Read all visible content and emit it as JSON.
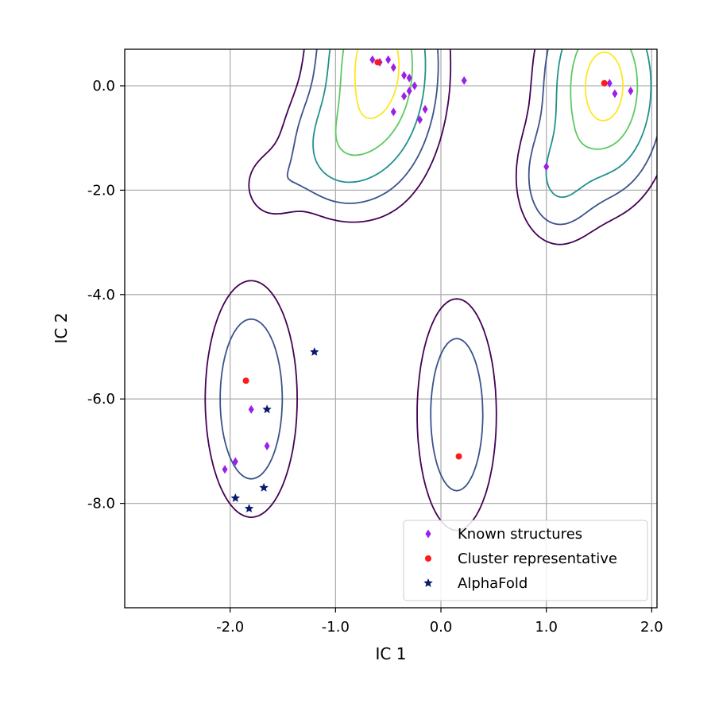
{
  "chart_data": {
    "type": "scatter",
    "title": "",
    "xlabel": "IC 1",
    "ylabel": "IC 2",
    "xlim": [
      -3.0,
      2.05
    ],
    "ylim": [
      -10.0,
      0.7
    ],
    "x_ticks": [
      -2.0,
      -1.0,
      0.0,
      1.0,
      2.0
    ],
    "x_tick_labels": [
      "-2.0",
      "-1.0",
      "0.0",
      "1.0",
      "2.0"
    ],
    "y_ticks": [
      0.0,
      -2.0,
      -4.0,
      -6.0,
      -8.0
    ],
    "y_tick_labels": [
      "0.0",
      "-2.0",
      "-4.0",
      "-6.0",
      "-8.0"
    ],
    "grid": true,
    "legend_position": "bottom-right",
    "contour_colors": [
      "#440154",
      "#3b528b",
      "#21918c",
      "#5ec962",
      "#fde725"
    ],
    "density_peaks": [
      {
        "x": -0.6,
        "y": 0.4,
        "sx": 0.3,
        "sy": 1.2,
        "w": 1.0
      },
      {
        "x": -1.0,
        "y": -1.2,
        "sx": 0.28,
        "sy": 0.7,
        "w": 0.35
      },
      {
        "x": -1.6,
        "y": -1.9,
        "sx": 0.2,
        "sy": 0.45,
        "w": 0.12
      },
      {
        "x": 1.55,
        "y": 0.0,
        "sx": 0.3,
        "sy": 1.1,
        "w": 0.95
      },
      {
        "x": 1.1,
        "y": -1.8,
        "sx": 0.22,
        "sy": 0.7,
        "w": 0.3
      },
      {
        "x": -1.8,
        "y": -6.0,
        "sx": 0.25,
        "sy": 1.3,
        "w": 0.32
      },
      {
        "x": 0.15,
        "y": -6.3,
        "sx": 0.22,
        "sy": 1.3,
        "w": 0.3
      }
    ],
    "series": [
      {
        "name": "Known structures",
        "marker": "diamond",
        "color": "#9b1fe8",
        "points": [
          [
            -0.65,
            0.5
          ],
          [
            -0.58,
            0.45
          ],
          [
            -0.5,
            0.5
          ],
          [
            -0.45,
            0.35
          ],
          [
            -0.35,
            0.2
          ],
          [
            -0.3,
            0.15
          ],
          [
            -0.25,
            0.0
          ],
          [
            -0.3,
            -0.1
          ],
          [
            -0.35,
            -0.2
          ],
          [
            -0.45,
            -0.5
          ],
          [
            -0.15,
            -0.45
          ],
          [
            -0.2,
            -0.65
          ],
          [
            0.22,
            0.1
          ],
          [
            1.6,
            0.05
          ],
          [
            1.65,
            -0.15
          ],
          [
            1.8,
            -0.1
          ],
          [
            1.0,
            -1.55
          ],
          [
            -1.8,
            -6.2
          ],
          [
            -1.65,
            -6.9
          ],
          [
            -1.95,
            -7.2
          ],
          [
            -2.05,
            -7.35
          ]
        ]
      },
      {
        "name": "Cluster representative",
        "marker": "circle",
        "color": "#ff1a1a",
        "points": [
          [
            -0.6,
            0.45
          ],
          [
            1.55,
            0.05
          ],
          [
            -1.85,
            -5.65
          ],
          [
            0.17,
            -7.1
          ]
        ]
      },
      {
        "name": "AlphaFold",
        "marker": "star",
        "color": "#0a1a6e",
        "points": [
          [
            -1.2,
            -5.1
          ],
          [
            -1.65,
            -6.2
          ],
          [
            -1.68,
            -7.7
          ],
          [
            -1.95,
            -7.9
          ],
          [
            -1.82,
            -8.1
          ]
        ]
      }
    ]
  }
}
